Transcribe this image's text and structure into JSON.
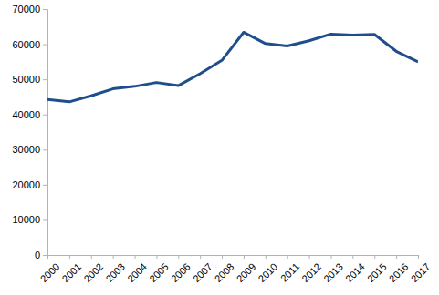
{
  "chart_data": {
    "type": "line",
    "categories": [
      "2000",
      "2001",
      "2002",
      "2003",
      "2004",
      "2005",
      "2006",
      "2007",
      "2008",
      "2009",
      "2010",
      "2011",
      "2012",
      "2013",
      "2014",
      "2015",
      "2016",
      "2017"
    ],
    "values": [
      44300,
      43600,
      45300,
      47300,
      48000,
      49100,
      48200,
      51600,
      55400,
      63400,
      60200,
      59500,
      61000,
      62900,
      62600,
      62800,
      58000,
      55000
    ],
    "color": "#1f4e8c",
    "ylim": [
      0,
      70000
    ],
    "yticks": [
      0,
      10000,
      20000,
      30000,
      40000,
      50000,
      60000,
      70000
    ],
    "grid": false
  }
}
